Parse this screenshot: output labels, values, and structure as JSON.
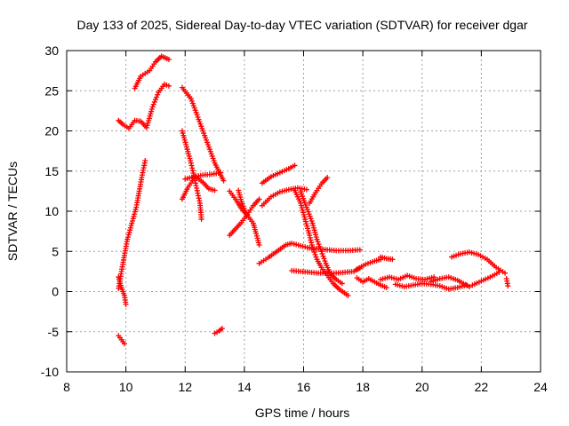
{
  "chart_data": {
    "type": "scatter",
    "title": "Day 133 of 2025, Sidereal Day-to-day VTEC variation (SDTVAR) for receiver dgar",
    "xlabel": "GPS time / hours",
    "ylabel": "SDTVAR / TECUs",
    "xlim": [
      8,
      24
    ],
    "ylim": [
      -10,
      30
    ],
    "xticks": [
      8,
      10,
      12,
      14,
      16,
      18,
      20,
      22,
      24
    ],
    "yticks": [
      -10,
      -5,
      0,
      5,
      10,
      15,
      20,
      25,
      30
    ],
    "grid": true,
    "marker": "+",
    "color": "#ff0000",
    "series": [
      {
        "name": "track-1",
        "points": [
          [
            9.75,
            21.3
          ],
          [
            9.9,
            20.8
          ],
          [
            10.1,
            20.3
          ],
          [
            10.3,
            21.3
          ],
          [
            10.5,
            21.2
          ],
          [
            10.7,
            20.4
          ],
          [
            10.9,
            23.0
          ],
          [
            11.1,
            24.8
          ],
          [
            11.3,
            25.8
          ],
          [
            11.45,
            25.6
          ]
        ]
      },
      {
        "name": "track-2",
        "points": [
          [
            10.3,
            25.3
          ],
          [
            10.5,
            26.8
          ],
          [
            10.8,
            27.5
          ],
          [
            11.0,
            28.6
          ],
          [
            11.2,
            29.3
          ],
          [
            11.45,
            28.9
          ]
        ]
      },
      {
        "name": "track-3",
        "points": [
          [
            9.75,
            0.4
          ],
          [
            9.85,
            2.5
          ],
          [
            9.95,
            4.5
          ],
          [
            10.05,
            6.5
          ],
          [
            10.2,
            8.5
          ],
          [
            10.35,
            10.5
          ],
          [
            10.45,
            12.5
          ],
          [
            10.55,
            14.5
          ],
          [
            10.65,
            16.3
          ]
        ]
      },
      {
        "name": "track-4",
        "points": [
          [
            9.75,
            1.8
          ],
          [
            9.85,
            0.5
          ],
          [
            9.95,
            -0.5
          ],
          [
            10.0,
            -1.6
          ]
        ]
      },
      {
        "name": "track-5",
        "points": [
          [
            9.75,
            -5.5
          ],
          [
            9.85,
            -6.0
          ],
          [
            9.95,
            -6.5
          ]
        ]
      },
      {
        "name": "track-6",
        "points": [
          [
            11.9,
            25.4
          ],
          [
            12.2,
            24.0
          ],
          [
            12.4,
            22.0
          ],
          [
            12.6,
            20.0
          ],
          [
            12.8,
            18.0
          ],
          [
            13.0,
            16.0
          ],
          [
            13.2,
            14.5
          ],
          [
            13.3,
            13.8
          ]
        ]
      },
      {
        "name": "track-7",
        "points": [
          [
            11.9,
            20.0
          ],
          [
            12.05,
            18.0
          ],
          [
            12.2,
            16.0
          ],
          [
            12.35,
            13.5
          ],
          [
            12.5,
            11.0
          ],
          [
            12.55,
            9.0
          ]
        ]
      },
      {
        "name": "track-8",
        "points": [
          [
            11.9,
            11.5
          ],
          [
            12.1,
            13.0
          ],
          [
            12.35,
            14.3
          ],
          [
            12.6,
            13.6
          ],
          [
            12.8,
            12.8
          ],
          [
            13.0,
            12.6
          ]
        ]
      },
      {
        "name": "track-9",
        "points": [
          [
            12.0,
            14.0
          ],
          [
            12.3,
            14.3
          ],
          [
            12.6,
            14.5
          ],
          [
            12.9,
            14.6
          ],
          [
            13.2,
            14.8
          ]
        ]
      },
      {
        "name": "track-10",
        "points": [
          [
            13.5,
            12.5
          ],
          [
            13.7,
            11.5
          ],
          [
            13.9,
            10.3
          ],
          [
            14.1,
            9.5
          ],
          [
            14.3,
            8.5
          ],
          [
            14.4,
            7.2
          ],
          [
            14.5,
            5.8
          ]
        ]
      },
      {
        "name": "track-11",
        "points": [
          [
            13.5,
            7.0
          ],
          [
            13.7,
            7.8
          ],
          [
            13.9,
            8.6
          ],
          [
            14.1,
            9.6
          ],
          [
            14.3,
            10.7
          ],
          [
            14.5,
            11.5
          ]
        ]
      },
      {
        "name": "track-12",
        "points": [
          [
            13.8,
            12.6
          ],
          [
            13.9,
            11.2
          ],
          [
            14.05,
            9.8
          ]
        ]
      },
      {
        "name": "track-13",
        "points": [
          [
            14.6,
            13.5
          ],
          [
            14.9,
            14.3
          ],
          [
            15.2,
            14.8
          ],
          [
            15.5,
            15.3
          ],
          [
            15.7,
            15.7
          ]
        ]
      },
      {
        "name": "track-14",
        "points": [
          [
            14.6,
            10.7
          ],
          [
            14.9,
            11.8
          ],
          [
            15.2,
            12.4
          ],
          [
            15.5,
            12.7
          ],
          [
            15.8,
            12.9
          ],
          [
            16.1,
            12.7
          ]
        ]
      },
      {
        "name": "track-15",
        "points": [
          [
            15.7,
            12.6
          ],
          [
            15.9,
            11.0
          ],
          [
            16.05,
            9.0
          ],
          [
            16.2,
            7.0
          ],
          [
            16.3,
            5.5
          ],
          [
            16.45,
            4.0
          ],
          [
            16.6,
            3.0
          ],
          [
            16.8,
            2.0
          ],
          [
            17.0,
            1.0
          ],
          [
            17.2,
            0.3
          ],
          [
            17.5,
            -0.5
          ]
        ]
      },
      {
        "name": "track-16",
        "points": [
          [
            15.9,
            12.4
          ],
          [
            16.1,
            10.5
          ],
          [
            16.3,
            8.5
          ],
          [
            16.45,
            6.5
          ],
          [
            16.6,
            5.0
          ],
          [
            16.75,
            3.5
          ],
          [
            16.9,
            2.2
          ],
          [
            17.1,
            1.5
          ],
          [
            17.3,
            1.0
          ]
        ]
      },
      {
        "name": "track-17",
        "points": [
          [
            16.2,
            11.0
          ],
          [
            16.4,
            12.3
          ],
          [
            16.6,
            13.4
          ],
          [
            16.8,
            14.2
          ]
        ]
      },
      {
        "name": "track-18",
        "points": [
          [
            14.5,
            3.5
          ],
          [
            14.8,
            4.2
          ],
          [
            15.1,
            5.0
          ],
          [
            15.4,
            5.8
          ],
          [
            15.6,
            6.0
          ],
          [
            15.9,
            5.7
          ],
          [
            16.2,
            5.4
          ],
          [
            16.5,
            5.3
          ],
          [
            16.8,
            5.2
          ],
          [
            17.1,
            5.1
          ],
          [
            17.5,
            5.1
          ],
          [
            17.9,
            5.2
          ]
        ]
      },
      {
        "name": "track-19",
        "points": [
          [
            15.6,
            2.6
          ],
          [
            15.9,
            2.5
          ],
          [
            16.2,
            2.4
          ],
          [
            16.5,
            2.3
          ],
          [
            16.8,
            2.3
          ],
          [
            17.1,
            2.3
          ],
          [
            17.4,
            2.4
          ],
          [
            17.7,
            2.5
          ],
          [
            17.9,
            2.9
          ]
        ]
      },
      {
        "name": "track-20",
        "points": [
          [
            17.8,
            2.8
          ],
          [
            18.1,
            3.4
          ],
          [
            18.4,
            3.8
          ],
          [
            18.6,
            4.0
          ]
        ]
      },
      {
        "name": "track-21",
        "points": [
          [
            17.8,
            1.7
          ],
          [
            18.0,
            1.2
          ],
          [
            18.2,
            1.6
          ],
          [
            18.4,
            1.2
          ],
          [
            18.6,
            0.8
          ],
          [
            18.8,
            0.5
          ]
        ]
      },
      {
        "name": "track-22",
        "points": [
          [
            18.6,
            4.3
          ],
          [
            18.8,
            4.1
          ],
          [
            19.0,
            4.0
          ]
        ]
      },
      {
        "name": "track-23",
        "points": [
          [
            18.6,
            1.5
          ],
          [
            18.9,
            1.8
          ],
          [
            19.2,
            1.5
          ],
          [
            19.5,
            2.0
          ],
          [
            19.8,
            1.6
          ],
          [
            20.1,
            1.5
          ],
          [
            20.4,
            1.8
          ]
        ]
      },
      {
        "name": "track-24",
        "points": [
          [
            19.1,
            0.9
          ],
          [
            19.4,
            0.6
          ],
          [
            19.7,
            0.8
          ],
          [
            20.0,
            1.0
          ],
          [
            20.3,
            0.9
          ],
          [
            20.6,
            0.7
          ],
          [
            20.9,
            0.3
          ],
          [
            21.2,
            0.5
          ],
          [
            21.5,
            0.8
          ]
        ]
      },
      {
        "name": "track-25",
        "points": [
          [
            20.3,
            1.2
          ],
          [
            20.6,
            1.6
          ],
          [
            20.9,
            1.8
          ],
          [
            21.2,
            1.4
          ],
          [
            21.4,
            1.0
          ],
          [
            21.6,
            0.6
          ]
        ]
      },
      {
        "name": "track-26",
        "points": [
          [
            21.0,
            4.3
          ],
          [
            21.3,
            4.7
          ],
          [
            21.6,
            4.9
          ],
          [
            21.9,
            4.6
          ],
          [
            22.2,
            4.0
          ],
          [
            22.5,
            3.0
          ],
          [
            22.8,
            2.3
          ]
        ]
      },
      {
        "name": "track-27",
        "points": [
          [
            21.7,
            0.8
          ],
          [
            22.0,
            1.3
          ],
          [
            22.3,
            1.8
          ],
          [
            22.6,
            2.4
          ]
        ]
      },
      {
        "name": "track-28",
        "points": [
          [
            22.85,
            1.6
          ],
          [
            22.9,
            0.7
          ]
        ]
      },
      {
        "name": "track-29",
        "points": [
          [
            13.0,
            -5.2
          ],
          [
            13.15,
            -4.9
          ],
          [
            13.25,
            -4.6
          ]
        ]
      }
    ]
  }
}
